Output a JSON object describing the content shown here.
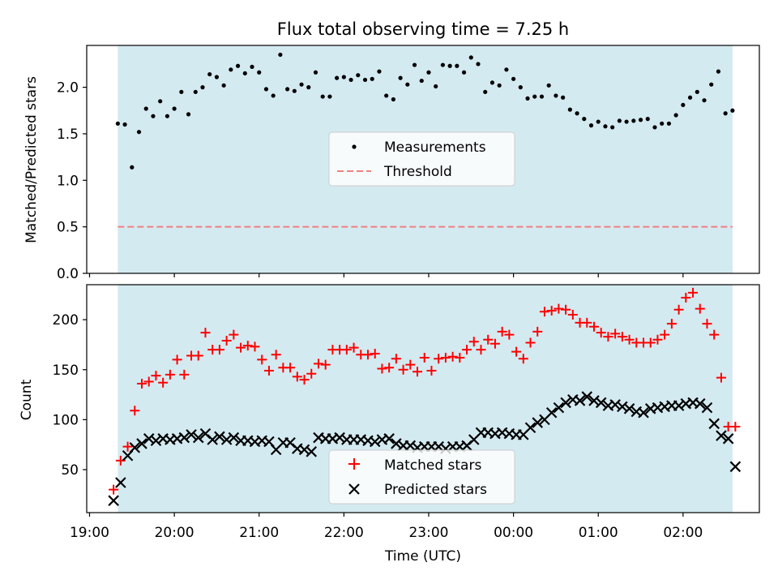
{
  "colors": {
    "shade": "#d4eaf1",
    "measurement": "#000000",
    "threshold": "#f08080",
    "matched": "#ff0000",
    "predicted": "#000000"
  },
  "chart_data": [
    {
      "type": "scatter",
      "title": "Flux total observing time = 7.25 h",
      "ylabel": "Matched/Predicted stars",
      "xlabel": "",
      "xlim": [
        "18:58",
        "02:54"
      ],
      "ylim": [
        0,
        2.45
      ],
      "yticks": [
        0.0,
        0.5,
        1.0,
        1.5,
        2.0
      ],
      "ytick_labels": [
        "0.0",
        "0.5",
        "1.0",
        "1.5",
        "2.0"
      ],
      "shaded_span": [
        "19:20",
        "02:35"
      ],
      "legend": {
        "position": "center",
        "entries": [
          "Measurements",
          "Threshold"
        ]
      },
      "threshold": 0.5,
      "series": [
        {
          "name": "Measurements",
          "marker": "dot",
          "x": [
            "19:20",
            "19:25",
            "19:30",
            "19:35",
            "19:40",
            "19:45",
            "19:50",
            "19:55",
            "20:00",
            "20:05",
            "20:10",
            "20:15",
            "20:20",
            "20:25",
            "20:30",
            "20:35",
            "20:40",
            "20:45",
            "20:50",
            "20:55",
            "21:00",
            "21:05",
            "21:10",
            "21:15",
            "21:20",
            "21:25",
            "21:30",
            "21:35",
            "21:40",
            "21:45",
            "21:50",
            "21:55",
            "22:00",
            "22:05",
            "22:10",
            "22:15",
            "22:20",
            "22:25",
            "22:30",
            "22:35",
            "22:40",
            "22:45",
            "22:50",
            "22:55",
            "23:00",
            "23:05",
            "23:10",
            "23:15",
            "23:20",
            "23:25",
            "23:30",
            "23:35",
            "23:40",
            "23:45",
            "23:50",
            "23:55",
            "00:00",
            "00:05",
            "00:10",
            "00:15",
            "00:20",
            "00:25",
            "00:30",
            "00:35",
            "00:40",
            "00:45",
            "00:50",
            "00:55",
            "01:00",
            "01:05",
            "01:10",
            "01:15",
            "01:20",
            "01:25",
            "01:30",
            "01:35",
            "01:40",
            "01:45",
            "01:50",
            "01:55",
            "02:00",
            "02:05",
            "02:10",
            "02:15",
            "02:20",
            "02:25",
            "02:30",
            "02:35"
          ],
          "y": [
            1.61,
            1.6,
            1.14,
            1.52,
            1.77,
            1.69,
            1.85,
            1.69,
            1.77,
            1.95,
            1.71,
            1.95,
            2.0,
            2.14,
            2.11,
            2.02,
            2.19,
            2.23,
            2.15,
            2.22,
            2.16,
            1.98,
            1.91,
            2.35,
            1.98,
            1.96,
            2.03,
            2.0,
            2.16,
            1.9,
            1.9,
            2.1,
            2.11,
            2.08,
            2.13,
            2.08,
            2.09,
            2.17,
            1.91,
            1.87,
            2.1,
            2.03,
            2.24,
            2.07,
            2.16,
            2.01,
            2.24,
            2.23,
            2.23,
            2.16,
            2.32,
            2.25,
            1.95,
            2.05,
            2.02,
            2.19,
            2.09,
            2.0,
            1.88,
            1.9,
            1.9,
            2.02,
            1.91,
            1.89,
            1.76,
            1.72,
            1.66,
            1.59,
            1.63,
            1.58,
            1.57,
            1.64,
            1.63,
            1.64,
            1.65,
            1.66,
            1.57,
            1.61,
            1.61,
            1.7,
            1.81,
            1.89,
            1.95,
            1.86,
            2.03,
            2.17,
            1.72,
            1.75
          ]
        }
      ]
    },
    {
      "type": "scatter",
      "title": "",
      "ylabel": "Count",
      "xlabel": "Time (UTC)",
      "xlim": [
        "18:58",
        "02:54"
      ],
      "ylim": [
        7,
        235
      ],
      "yticks": [
        50,
        100,
        150,
        200
      ],
      "ytick_labels": [
        "50",
        "100",
        "150",
        "200"
      ],
      "xticks": [
        "19:00",
        "20:00",
        "21:00",
        "22:00",
        "23:00",
        "00:00",
        "01:00",
        "02:00"
      ],
      "shaded_span": [
        "19:20",
        "02:35"
      ],
      "legend": {
        "position": "lower center",
        "entries": [
          "Matched stars",
          "Predicted stars"
        ]
      },
      "series": [
        {
          "name": "Matched stars",
          "marker": "plus",
          "x": [
            "19:17",
            "19:22",
            "19:27",
            "19:32",
            "19:37",
            "19:42",
            "19:47",
            "19:52",
            "19:57",
            "20:02",
            "20:07",
            "20:12",
            "20:17",
            "20:22",
            "20:27",
            "20:32",
            "20:37",
            "20:42",
            "20:47",
            "20:52",
            "20:57",
            "21:02",
            "21:07",
            "21:12",
            "21:17",
            "21:22",
            "21:27",
            "21:32",
            "21:37",
            "21:42",
            "21:47",
            "21:52",
            "21:57",
            "22:02",
            "22:07",
            "22:12",
            "22:17",
            "22:22",
            "22:27",
            "22:32",
            "22:37",
            "22:42",
            "22:47",
            "22:52",
            "22:57",
            "23:02",
            "23:07",
            "23:12",
            "23:17",
            "23:22",
            "23:27",
            "23:32",
            "23:37",
            "23:42",
            "23:47",
            "23:52",
            "23:57",
            "00:02",
            "00:07",
            "00:12",
            "00:17",
            "00:22",
            "00:27",
            "00:32",
            "00:37",
            "00:42",
            "00:47",
            "00:52",
            "00:57",
            "01:02",
            "01:07",
            "01:12",
            "01:17",
            "01:22",
            "01:27",
            "01:32",
            "01:37",
            "01:42",
            "01:47",
            "01:52",
            "01:57",
            "02:02",
            "02:07",
            "02:12",
            "02:17",
            "02:22",
            "02:27",
            "02:32",
            "02:37"
          ],
          "y": [
            30,
            59,
            73,
            109,
            136,
            138,
            144,
            137,
            145,
            160,
            145,
            164,
            164,
            187,
            170,
            170,
            179,
            185,
            172,
            174,
            173,
            160,
            149,
            165,
            152,
            152,
            143,
            140,
            146,
            156,
            155,
            170,
            170,
            170,
            172,
            165,
            165,
            166,
            151,
            152,
            161,
            150,
            155,
            148,
            162,
            149,
            161,
            162,
            163,
            162,
            170,
            178,
            170,
            180,
            176,
            188,
            185,
            168,
            161,
            177,
            188,
            208,
            209,
            211,
            210,
            205,
            197,
            197,
            193,
            187,
            183,
            186,
            183,
            180,
            177,
            177,
            177,
            180,
            185,
            196,
            210,
            222,
            227,
            211,
            196,
            185,
            142,
            93,
            93
          ]
        },
        {
          "name": "Predicted stars",
          "marker": "x",
          "x": [
            "19:17",
            "19:22",
            "19:27",
            "19:32",
            "19:37",
            "19:42",
            "19:47",
            "19:52",
            "19:57",
            "20:02",
            "20:07",
            "20:12",
            "20:17",
            "20:22",
            "20:27",
            "20:32",
            "20:37",
            "20:42",
            "20:47",
            "20:52",
            "20:57",
            "21:02",
            "21:07",
            "21:12",
            "21:17",
            "21:22",
            "21:27",
            "21:32",
            "21:37",
            "21:42",
            "21:47",
            "21:52",
            "21:57",
            "22:02",
            "22:07",
            "22:12",
            "22:17",
            "22:22",
            "22:27",
            "22:32",
            "22:37",
            "22:42",
            "22:47",
            "22:52",
            "22:57",
            "23:02",
            "23:07",
            "23:12",
            "23:17",
            "23:22",
            "23:27",
            "23:32",
            "23:37",
            "23:42",
            "23:47",
            "23:52",
            "23:57",
            "00:02",
            "00:07",
            "00:12",
            "00:17",
            "00:22",
            "00:27",
            "00:32",
            "00:37",
            "00:42",
            "00:47",
            "00:52",
            "00:57",
            "01:02",
            "01:07",
            "01:12",
            "01:17",
            "01:22",
            "01:27",
            "01:32",
            "01:37",
            "01:42",
            "01:47",
            "01:52",
            "01:57",
            "02:02",
            "02:07",
            "02:12",
            "02:17",
            "02:22",
            "02:27",
            "02:32",
            "02:37"
          ],
          "y": [
            19,
            37,
            64,
            72,
            76,
            81,
            79,
            81,
            80,
            81,
            82,
            85,
            82,
            86,
            80,
            83,
            80,
            82,
            79,
            79,
            78,
            79,
            78,
            70,
            77,
            77,
            71,
            70,
            68,
            82,
            81,
            81,
            82,
            80,
            80,
            80,
            79,
            78,
            80,
            81,
            76,
            74,
            74,
            72,
            73,
            73,
            73,
            71,
            73,
            73,
            74,
            80,
            87,
            87,
            86,
            87,
            86,
            85,
            85,
            92,
            97,
            100,
            107,
            112,
            117,
            120,
            119,
            123,
            119,
            117,
            114,
            115,
            113,
            111,
            108,
            107,
            111,
            112,
            113,
            114,
            114,
            116,
            117,
            116,
            112,
            96,
            84,
            81,
            53
          ]
        }
      ]
    }
  ]
}
